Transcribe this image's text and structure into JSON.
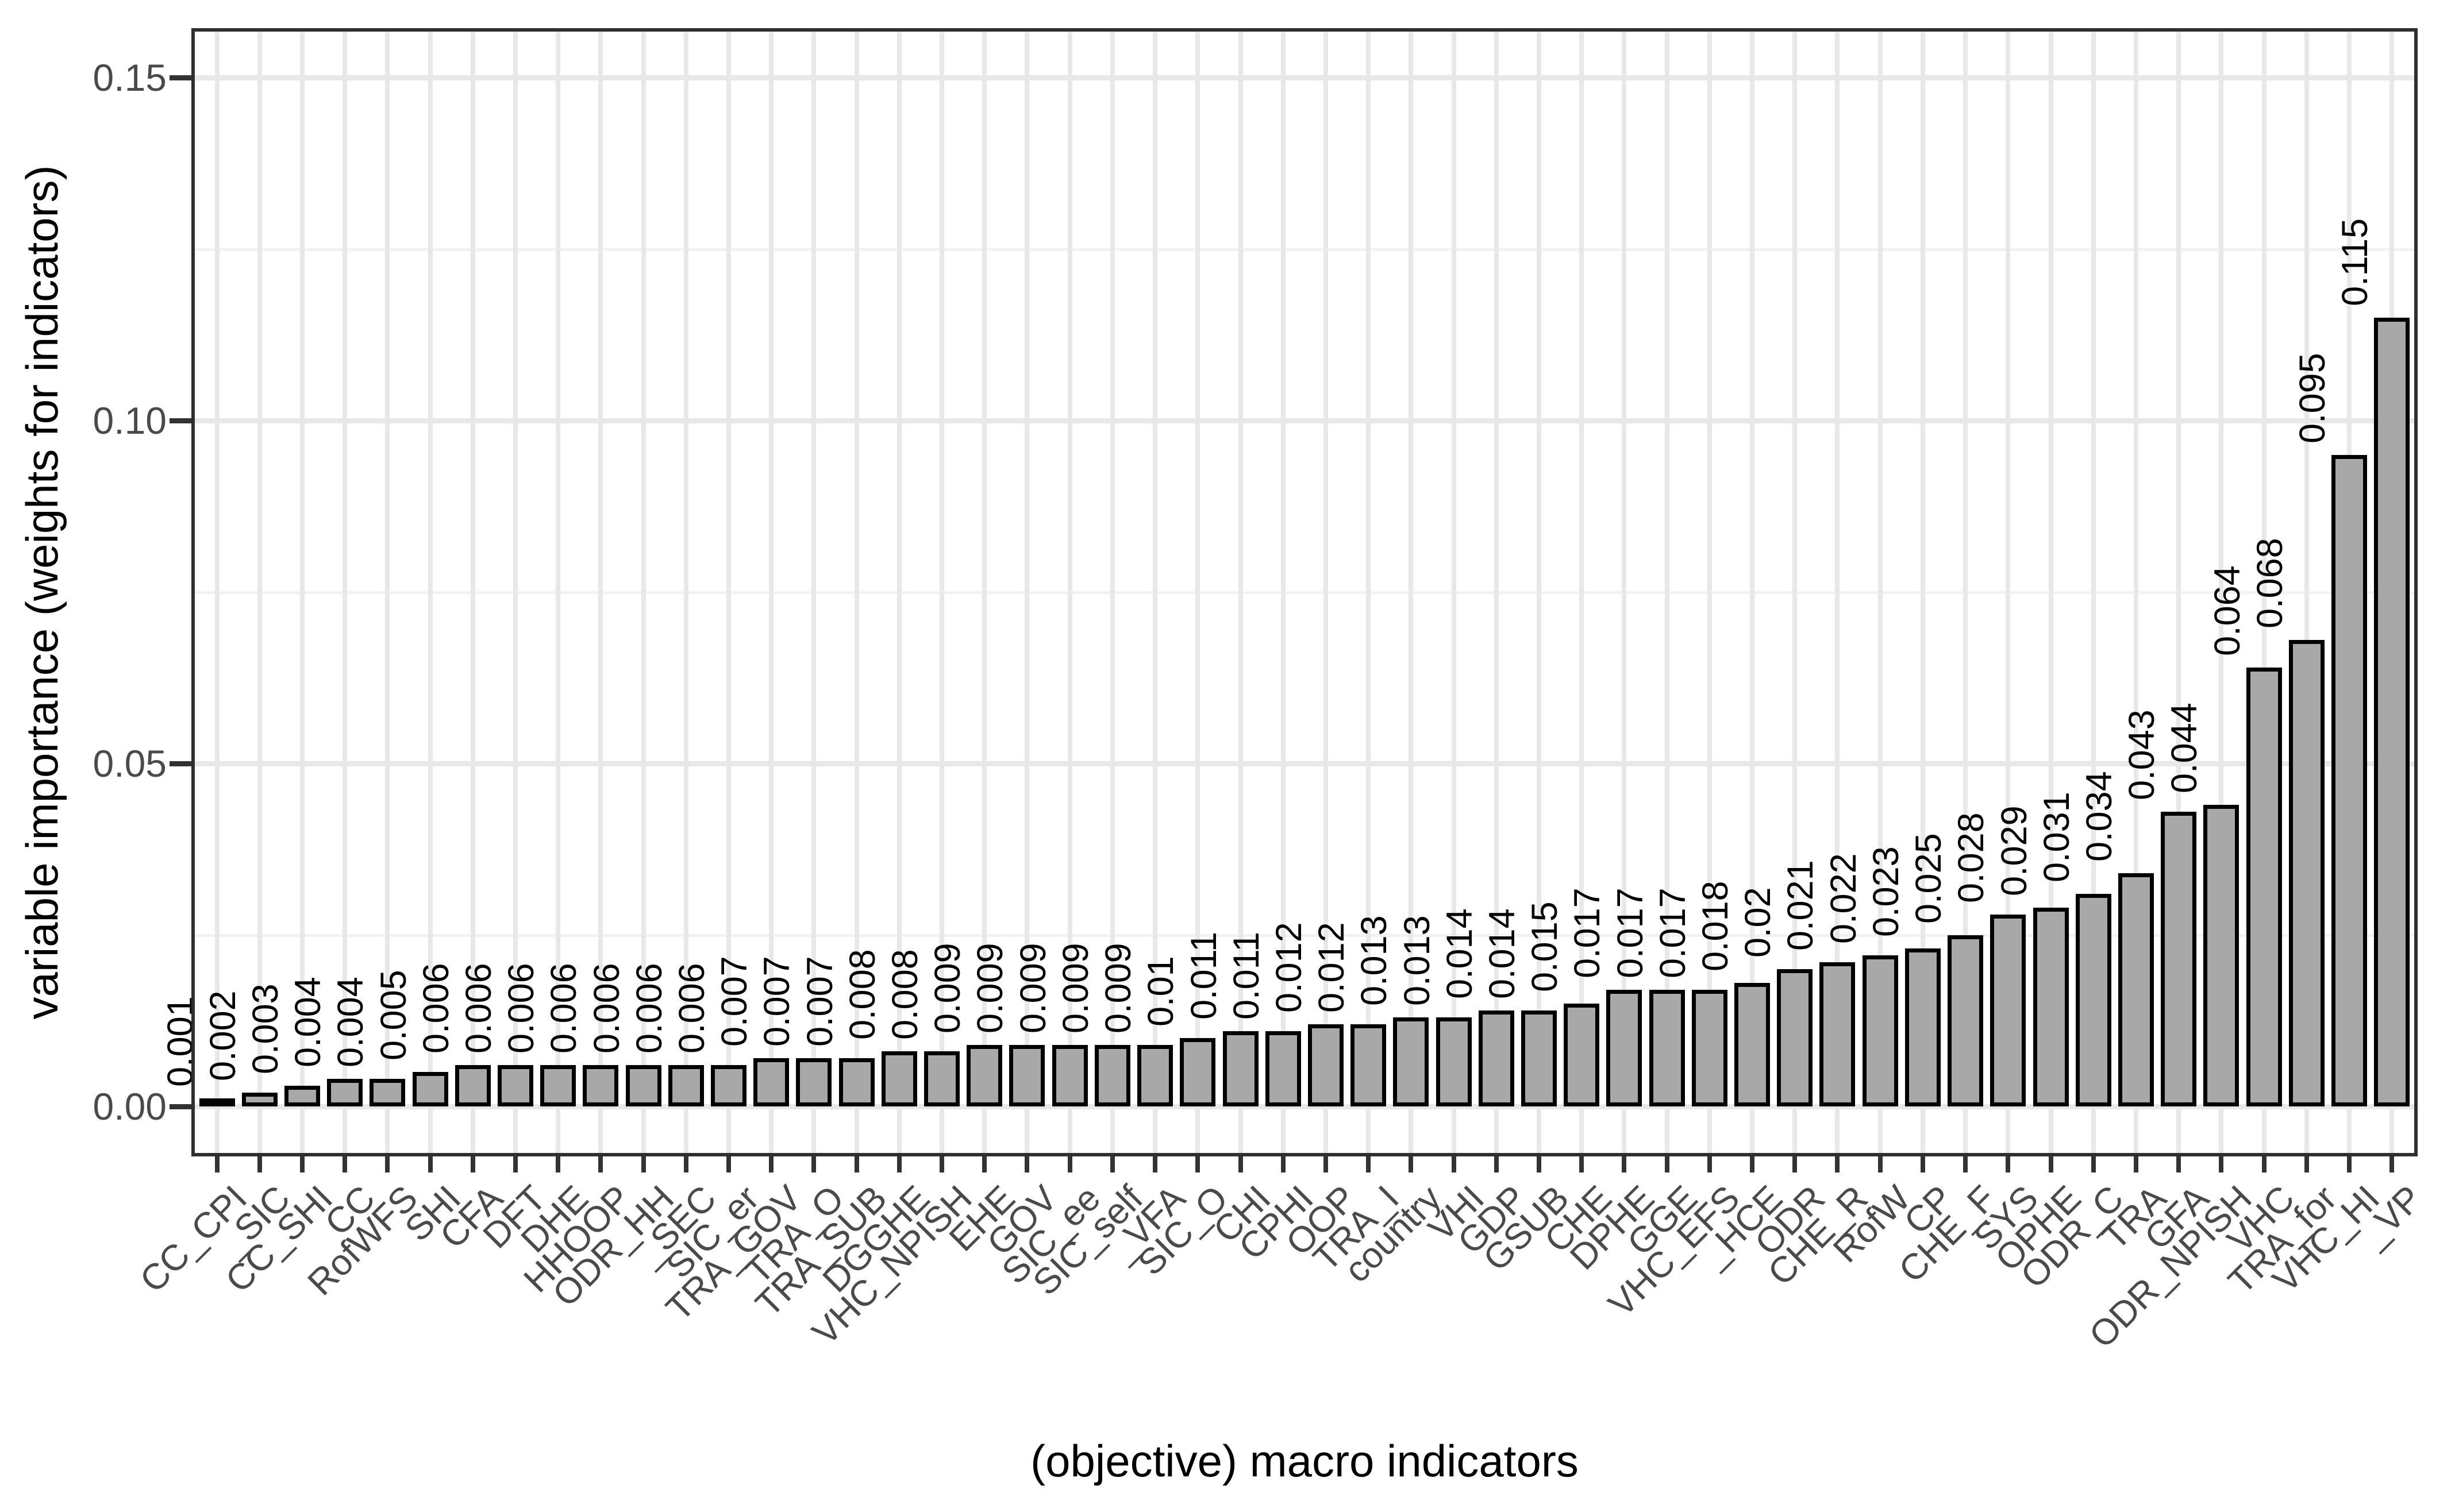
{
  "chart_data": {
    "type": "bar",
    "title": "",
    "xlabel": "(objective) macro indicators",
    "ylabel": "variable importance (weights for indicators)",
    "categories": [
      "CC_CPI",
      "_SIC",
      "CC_SHI",
      "CC",
      "RofWFS",
      "SHI",
      "CFA",
      "DFT",
      "DHE",
      "HHOOP",
      "ODR_HH",
      "_SEC",
      "SIC_er",
      "TRA_GOV",
      "TRA_O",
      "TRA_SUB",
      "DGGHE",
      "VHC_NPISH",
      "EHE",
      "GOV",
      "SIC_ee",
      "SIC_self",
      "_VFA",
      "SIC_O",
      "CHI",
      "CPHI",
      "OOP",
      "TRA_I",
      "country",
      "VHI",
      "GDP",
      "GSUB",
      "CHE",
      "DPHE",
      "GGE",
      "VHC_EFS",
      "_HCE",
      "ODR",
      "CHE_R",
      "RofW",
      "CP",
      "CHE_F",
      "SYS",
      "OPHE",
      "ODR_C",
      "TRA",
      "GFA",
      "ODR_NPISH",
      "VHC",
      "TRA_for",
      "VHC_HI",
      "_VP"
    ],
    "values": [
      0.001,
      0.002,
      0.003,
      0.004,
      0.004,
      0.005,
      0.006,
      0.006,
      0.006,
      0.006,
      0.006,
      0.006,
      0.006,
      0.007,
      0.007,
      0.007,
      0.008,
      0.008,
      0.009,
      0.009,
      0.009,
      0.009,
      0.009,
      0.01,
      0.011,
      0.011,
      0.012,
      0.012,
      0.013,
      0.013,
      0.014,
      0.014,
      0.015,
      0.017,
      0.017,
      0.017,
      0.018,
      0.02,
      0.021,
      0.022,
      0.023,
      0.025,
      0.028,
      0.029,
      0.031,
      0.034,
      0.043,
      0.044,
      0.064,
      0.068,
      0.095,
      0.115
    ],
    "bar_value_labels": [
      "0.001",
      "0.002",
      "0.003",
      "0.004",
      "0.004",
      "0.005",
      "0.006",
      "0.006",
      "0.006",
      "0.006",
      "0.006",
      "0.006",
      "0.006",
      "0.007",
      "0.007",
      "0.007",
      "0.008",
      "0.008",
      "0.009",
      "0.009",
      "0.009",
      "0.009",
      "0.009",
      "0.01",
      "0.011",
      "0.011",
      "0.012",
      "0.012",
      "0.013",
      "0.013",
      "0.014",
      "0.014",
      "0.015",
      "0.017",
      "0.017",
      "0.017",
      "0.018",
      "0.02",
      "0.021",
      "0.022",
      "0.023",
      "0.025",
      "0.028",
      "0.029",
      "0.031",
      "0.034",
      "0.043",
      "0.044",
      "0.064",
      "0.068",
      "0.095",
      "0.115"
    ],
    "y_axis": {
      "tick_labels": [
        "0.00",
        "0.05",
        "0.10",
        "0.15"
      ],
      "tick_values": [
        0,
        0.05,
        0.1,
        0.15
      ],
      "minor_tick_values": [
        0.025,
        0.075,
        0.125
      ],
      "range": [
        0,
        0.157
      ]
    },
    "x_axis": {
      "label_angle_deg": 45
    },
    "bar_label_angle_deg": 90,
    "legend": "none",
    "grid": {
      "horizontal_major": true,
      "horizontal_minor": true,
      "vertical_per_category": true
    }
  },
  "colors": {
    "background": "#ffffff",
    "bar_fill": "#a8a8a8",
    "bar_stroke": "#000000",
    "grid_major": "#e8e8e8",
    "grid_minor": "#f2f2f2",
    "axis_text": "#4a4a4a",
    "panel_border": "#2f2f2f",
    "tick_mark": "#333333",
    "bar_value_text": "#000000",
    "axis_title_text": "#000000"
  }
}
